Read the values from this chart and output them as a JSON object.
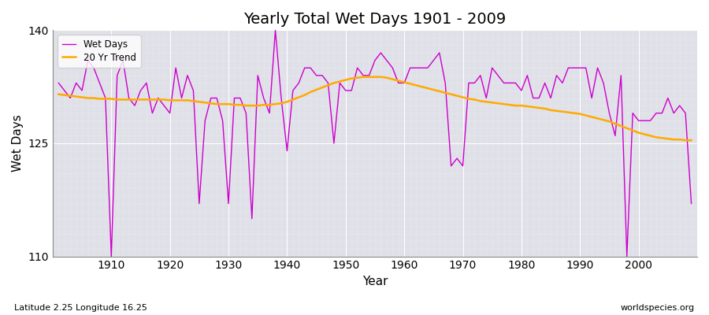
{
  "title": "Yearly Total Wet Days 1901 - 2009",
  "xlabel": "Year",
  "ylabel": "Wet Days",
  "subtitle": "Latitude 2.25 Longitude 16.25",
  "watermark": "worldspecies.org",
  "ylim": [
    110,
    140
  ],
  "yticks": [
    110,
    125,
    140
  ],
  "line_color": "#cc00cc",
  "trend_color": "#ffaa00",
  "fig_bg_color": "#ffffff",
  "plot_bg_color": "#e0e0e8",
  "years": [
    1901,
    1902,
    1903,
    1904,
    1905,
    1906,
    1907,
    1908,
    1909,
    1910,
    1911,
    1912,
    1913,
    1914,
    1915,
    1916,
    1917,
    1918,
    1919,
    1920,
    1921,
    1922,
    1923,
    1924,
    1925,
    1926,
    1927,
    1928,
    1929,
    1930,
    1931,
    1932,
    1933,
    1934,
    1935,
    1936,
    1937,
    1938,
    1939,
    1940,
    1941,
    1942,
    1943,
    1944,
    1945,
    1946,
    1947,
    1948,
    1949,
    1950,
    1951,
    1952,
    1953,
    1954,
    1955,
    1956,
    1957,
    1958,
    1959,
    1960,
    1961,
    1962,
    1963,
    1964,
    1965,
    1966,
    1967,
    1968,
    1969,
    1970,
    1971,
    1972,
    1973,
    1974,
    1975,
    1976,
    1977,
    1978,
    1979,
    1980,
    1981,
    1982,
    1983,
    1984,
    1985,
    1986,
    1987,
    1988,
    1989,
    1990,
    1991,
    1992,
    1993,
    1994,
    1995,
    1996,
    1997,
    1998,
    1999,
    2000,
    2001,
    2002,
    2003,
    2004,
    2005,
    2006,
    2007,
    2008,
    2009
  ],
  "wet_days": [
    133,
    132,
    131,
    133,
    132,
    136,
    135,
    133,
    131,
    110,
    134,
    136,
    131,
    130,
    132,
    133,
    129,
    131,
    130,
    129,
    135,
    131,
    134,
    132,
    117,
    128,
    131,
    131,
    128,
    117,
    131,
    131,
    129,
    115,
    134,
    131,
    129,
    140,
    131,
    124,
    132,
    133,
    135,
    135,
    134,
    134,
    133,
    125,
    133,
    132,
    132,
    135,
    134,
    134,
    136,
    137,
    136,
    135,
    133,
    133,
    135,
    135,
    135,
    135,
    136,
    137,
    133,
    122,
    123,
    122,
    133,
    133,
    134,
    131,
    135,
    134,
    133,
    133,
    133,
    132,
    134,
    131,
    131,
    133,
    131,
    134,
    133,
    135,
    135,
    135,
    135,
    131,
    135,
    133,
    129,
    126,
    134,
    110,
    129,
    128,
    128,
    128,
    129,
    129,
    131,
    129,
    130,
    129,
    117
  ],
  "trend_values": [
    131.5,
    131.4,
    131.3,
    131.2,
    131.1,
    131.0,
    131.0,
    130.9,
    130.9,
    130.9,
    130.8,
    130.8,
    130.8,
    130.8,
    130.8,
    130.8,
    130.8,
    130.8,
    130.8,
    130.7,
    130.7,
    130.7,
    130.7,
    130.6,
    130.5,
    130.4,
    130.3,
    130.2,
    130.2,
    130.2,
    130.1,
    130.1,
    130.0,
    130.0,
    130.0,
    130.1,
    130.1,
    130.2,
    130.3,
    130.5,
    130.8,
    131.1,
    131.4,
    131.8,
    132.1,
    132.4,
    132.7,
    133.0,
    133.2,
    133.4,
    133.6,
    133.7,
    133.8,
    133.8,
    133.8,
    133.8,
    133.7,
    133.5,
    133.3,
    133.1,
    132.9,
    132.7,
    132.5,
    132.3,
    132.1,
    131.9,
    131.7,
    131.5,
    131.3,
    131.1,
    130.9,
    130.8,
    130.6,
    130.5,
    130.4,
    130.3,
    130.2,
    130.1,
    130.0,
    130.0,
    129.9,
    129.8,
    129.7,
    129.6,
    129.4,
    129.3,
    129.2,
    129.1,
    129.0,
    128.9,
    128.7,
    128.5,
    128.3,
    128.1,
    127.9,
    127.6,
    127.3,
    127.0,
    126.7,
    126.4,
    126.2,
    126.0,
    125.8,
    125.7,
    125.6,
    125.5,
    125.5,
    125.4,
    125.4
  ]
}
